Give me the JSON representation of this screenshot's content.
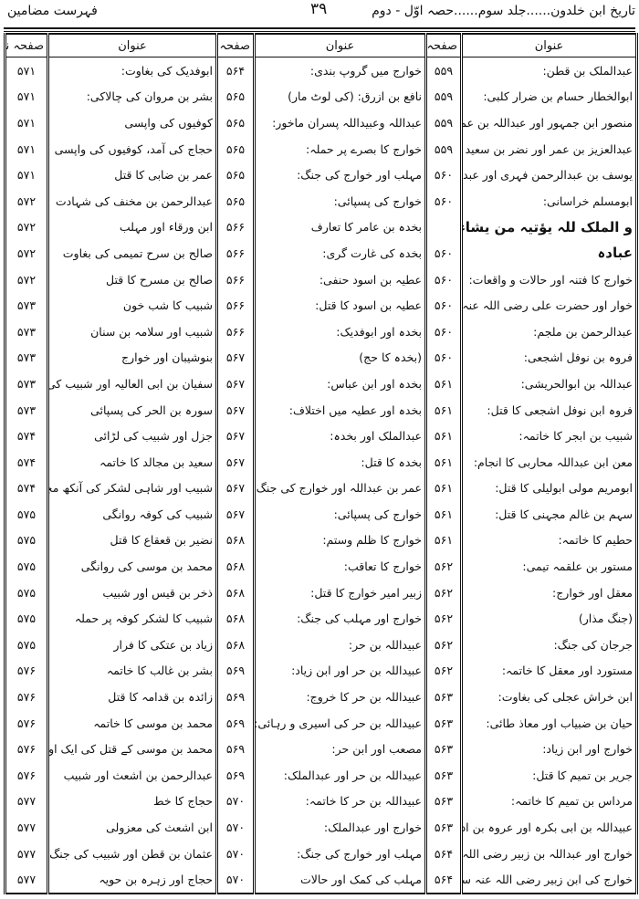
{
  "header": {
    "book_title": "تاریخ ابن خلدون......جلد سوم......حصہ اوّل - دوم",
    "page_number": "۳۹",
    "section_title": "فہرست مضامین"
  },
  "table_headers": {
    "title": "عنوان",
    "page": "صفحہ نمبر"
  },
  "columns": [
    {
      "rows": [
        {
          "title": "عبدالملک بن قطن:",
          "page": "۵۵۹"
        },
        {
          "title": "ابوالخطار حسام بن ضرار کلبی:",
          "page": "۵۵۹"
        },
        {
          "title": "منصور ابن جمہور اور عبداللہ بن عمر :",
          "page": "۵۵۹"
        },
        {
          "title": "عبدالعزیز بن عمر اور نضر بن سعید حریشی:",
          "page": "۵۵۹"
        },
        {
          "title": "یوسف بن عبدالرحمن فہری اور عبدالواحد:",
          "page": "۵۶۰"
        },
        {
          "title": "ابومسلم خراسانی:",
          "page": "۵۶۰"
        },
        {
          "title": "و الملک للہ یؤتیہ من یشاء من",
          "page": ""
        },
        {
          "title": "عبادہ",
          "page": "۵۶۰"
        },
        {
          "title": "خوارج کا فتنہ اور حالات و واقعات:",
          "page": "۵۶۰"
        },
        {
          "title": "خوار اور حضرت علی رضی اللہ عنہ",
          "page": "۵۶۰"
        },
        {
          "title": "عبدالرحمن بن ملجم:",
          "page": "۵۶۰"
        },
        {
          "title": "فروہ بن نوفل اشجعی:",
          "page": "۵۶۰"
        },
        {
          "title": "عبداللہ بن ابوالحریشی:",
          "page": "۵۶۱"
        },
        {
          "title": "فروہ ابن نوفل اشجعی کا قتل:",
          "page": "۵۶۱"
        },
        {
          "title": "شبیب بن ابجر کا خاتمہ:",
          "page": "۵۶۱"
        },
        {
          "title": "معن ابن عبداللہ محاربی کا انجام:",
          "page": "۵۶۱"
        },
        {
          "title": "ابومریم مولی ابولیلی کا قتل:",
          "page": "۵۶۱"
        },
        {
          "title": "سہم بن غالم مجہنی کا قتل:",
          "page": "۵۶۱"
        },
        {
          "title": "حطیم کا خاتمہ:",
          "page": "۵۶۱"
        },
        {
          "title": "مستور بن علقمہ تیمی:",
          "page": "۵۶۲"
        },
        {
          "title": "معقل اور خوارج:",
          "page": "۵۶۲"
        },
        {
          "title": "(جنگ مذار)",
          "page": "۵۶۲"
        },
        {
          "title": "جرجان کی جنگ:",
          "page": "۵۶۲"
        },
        {
          "title": "مستورد اور معقل کا خاتمہ:",
          "page": "۵۶۲"
        },
        {
          "title": "ابن خراش عجلی کی بغاوت:",
          "page": "۵۶۳"
        },
        {
          "title": "حیان بن ضبیاب اور معاذ طائی:",
          "page": "۵۶۳"
        },
        {
          "title": "خوارج اور ابن زیاد:",
          "page": "۵۶۳"
        },
        {
          "title": "جریر بن تمیم کا قتل:",
          "page": "۵۶۳"
        },
        {
          "title": "مرداس بن تمیم کا خاتمہ:",
          "page": "۵۶۳"
        },
        {
          "title": "عبیداللہ بن ابی بکرہ اور عروہ بن ادیہ:",
          "page": "۵۶۳"
        },
        {
          "title": "خوارج اور عبداللہ بن زبیر رضی اللہ عنہ:",
          "page": "۵۶۴"
        },
        {
          "title": "خوارج کی ابن زبیر رضی اللہ عنہ سے علیحدگی:",
          "page": "۵۶۴"
        }
      ]
    },
    {
      "rows": [
        {
          "title": "خوارج میں گروپ بندی:",
          "page": "۵۶۴"
        },
        {
          "title": "نافع بن ازرق: (کی لوٹ مار)",
          "page": "۵۶۵"
        },
        {
          "title": "عبداللہ وعبیداللہ پسران ماخور:",
          "page": "۵۶۵"
        },
        {
          "title": "خوارج کا بصرے پر حملہ:",
          "page": "۵۶۵"
        },
        {
          "title": "مہلب اور خوارج کی جنگ:",
          "page": "۵۶۵"
        },
        {
          "title": "خوارج کی پسپائی:",
          "page": "۵۶۵"
        },
        {
          "title": "بخدہ بن عامر کا تعارف",
          "page": "۵۶۶"
        },
        {
          "title": "بخدہ کی غارت گری:",
          "page": "۵۶۶"
        },
        {
          "title": "عطیہ بن اسود حنفی:",
          "page": "۵۶۶"
        },
        {
          "title": "عطیہ بن اسود کا قتل:",
          "page": "۵۶۶"
        },
        {
          "title": "بخدہ اور ابوفدیک:",
          "page": "۵۶۶"
        },
        {
          "title": "(بخدہ کا حج)",
          "page": "۵۶۷"
        },
        {
          "title": "بخدہ اور ابن عباس:",
          "page": "۵۶۷"
        },
        {
          "title": "بخدہ اور عطیہ میں اختلاف:",
          "page": "۵۶۷"
        },
        {
          "title": "عبدالملک اور بخدہ:",
          "page": "۵۶۷"
        },
        {
          "title": "بخدہ کا قتل:",
          "page": "۵۶۷"
        },
        {
          "title": "عمر بن عبداللہ اور خوارج کی جنگ:",
          "page": "۵۶۷"
        },
        {
          "title": "خوارج کی پسپائی:",
          "page": "۵۶۷"
        },
        {
          "title": "خوارج کا ظلم وستم:",
          "page": "۵۶۸"
        },
        {
          "title": "خوارج کا تعاقب:",
          "page": "۵۶۸"
        },
        {
          "title": "زبیر امیر خوارج کا قتل:",
          "page": "۵۶۸"
        },
        {
          "title": "خوارج اور مہلب کی جنگ:",
          "page": "۵۶۸"
        },
        {
          "title": "عبیداللہ بن حر:",
          "page": "۵۶۸"
        },
        {
          "title": "عبیداللہ بن حر اور ابن زیاد:",
          "page": "۵۶۹"
        },
        {
          "title": "عبیداللہ بن حر کا خروج:",
          "page": "۵۶۹"
        },
        {
          "title": "عبیداللہ بن حر کی اسیری و رہائی:",
          "page": "۵۶۹"
        },
        {
          "title": "مصعب اور ابن حر:",
          "page": "۵۶۹"
        },
        {
          "title": "عبیداللہ بن حر اور عبدالملک:",
          "page": "۵۶۹"
        },
        {
          "title": "عبیداللہ بن حر کا خاتمہ:",
          "page": "۵۷۰"
        },
        {
          "title": "خوارج اور عبدالملک:",
          "page": "۵۷۰"
        },
        {
          "title": "مہلب اور خوارج کی جنگ:",
          "page": "۵۷۰"
        },
        {
          "title": "مہلب کی کمک اور حالات",
          "page": "۵۷۰"
        }
      ]
    },
    {
      "rows": [
        {
          "title": "ابوفدیک کی بغاوت:",
          "page": "۵۷۱"
        },
        {
          "title": "بشر بن مروان کی چالاکی:",
          "page": "۵۷۱"
        },
        {
          "title": "کوفیوں کی واپسی",
          "page": "۵۷۱"
        },
        {
          "title": "حجاج کی آمد، کوفیوں کی واپسی",
          "page": "۵۷۱"
        },
        {
          "title": "عمر بن ضابی کا قتل",
          "page": "۵۷۱"
        },
        {
          "title": "عبدالرحمن بن مخنف کی شہادت",
          "page": "۵۷۲"
        },
        {
          "title": "ابن ورقاء اور مہلب",
          "page": "۵۷۲"
        },
        {
          "title": "صالح بن سرح تمیمی کی بغاوت",
          "page": "۵۷۲"
        },
        {
          "title": "صالح بن مسرح کا قتل",
          "page": "۵۷۲"
        },
        {
          "title": "شبیب کا شب خون",
          "page": "۵۷۳"
        },
        {
          "title": "شبیب اور سلامہ بن سنان",
          "page": "۵۷۳"
        },
        {
          "title": "بنوشیبان اور خوارج",
          "page": "۵۷۳"
        },
        {
          "title": "سفیان بن ابی العالیہ اور شبیب کی جنگ",
          "page": "۵۷۳"
        },
        {
          "title": "سورہ بن الحر کی پسپائی",
          "page": "۵۷۳"
        },
        {
          "title": "جزل اور شبیب کی لڑائی",
          "page": "۵۷۴"
        },
        {
          "title": "سعید بن مجالد کا خاتمہ",
          "page": "۵۷۴"
        },
        {
          "title": "شبیب اور شاہی لشکر کی آنکھ مچولی",
          "page": "۵۷۴"
        },
        {
          "title": "شبیب کی کوفہ روانگی",
          "page": "۵۷۵"
        },
        {
          "title": "نضیر بن قعقاع کا قتل",
          "page": "۵۷۵"
        },
        {
          "title": "محمد بن موسی کی روانگی",
          "page": "۵۷۵"
        },
        {
          "title": "ذخر بن قیس اور شبیب",
          "page": "۵۷۵"
        },
        {
          "title": "شبیب کا لشکر کوفہ پر حملہ",
          "page": "۵۷۵"
        },
        {
          "title": "زیاد بن عتکی کا فرار",
          "page": "۵۷۵"
        },
        {
          "title": "بشر بن غالب کا خاتمہ",
          "page": "۵۷۶"
        },
        {
          "title": "زائدہ بن قدامہ کا قتل",
          "page": "۵۷۶"
        },
        {
          "title": "محمد بن موسی کا خاتمہ",
          "page": "۵۷۶"
        },
        {
          "title": "محمد بن موسی کے قتل کی ایک اور روایت",
          "page": "۵۷۶"
        },
        {
          "title": "عبدالرحمن بن اشعث اور شبیب",
          "page": "۵۷۶"
        },
        {
          "title": "حجاج کا خط",
          "page": "۵۷۷"
        },
        {
          "title": "ابن اشعث کی معزولی",
          "page": "۵۷۷"
        },
        {
          "title": "عثمان بن قطن اور شبیب کی جنگ",
          "page": "۵۷۷"
        },
        {
          "title": "حجاج اور زہرہ بن حویہ",
          "page": "۵۷۷"
        }
      ]
    }
  ]
}
